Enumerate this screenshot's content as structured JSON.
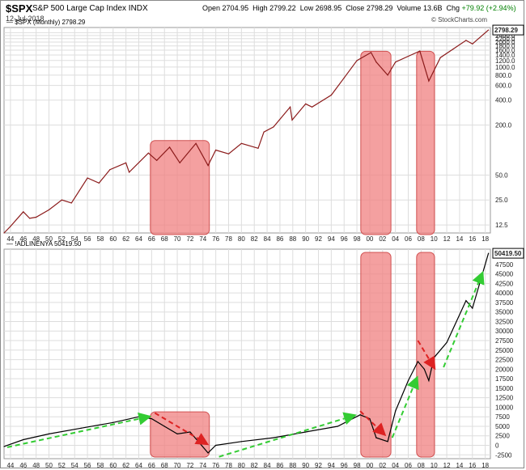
{
  "header": {
    "symbol": "$SPX",
    "description": "S&P 500 Large Cap Index INDX",
    "date": "12-Jul-2018",
    "open_label": "Open",
    "open": "2704.95",
    "high_label": "High",
    "high": "2799.22",
    "low_label": "Low",
    "low": "2698.95",
    "close_label": "Close",
    "close": "2798.29",
    "volume_label": "Volume",
    "volume": "13.6B",
    "chg_label": "Chg",
    "chg": "+79.92 (+2.94%)",
    "credit": "© StockCharts.com"
  },
  "colors": {
    "recession_fill": "#f08080",
    "recession_stroke": "#d05050",
    "spx_line": "#8b1a1a",
    "adl_line": "#000000",
    "green_arrow": "#33cc33",
    "red_arrow": "#dd2222",
    "grid": "#dddddd"
  },
  "chart_data": [
    {
      "type": "line",
      "title": "$SPX (Monthly) 2798.29",
      "series": [
        {
          "name": "$SPX (Monthly) 2798.29",
          "x": [
            1943,
            1944,
            1946,
            1947,
            1948,
            1950,
            1952,
            1953.5,
            1956,
            1957.8,
            1959.5,
            1962,
            1962.5,
            1965.5,
            1966.8,
            1968.8,
            1970.4,
            1972.9,
            1974.8,
            1976,
            1978,
            1980,
            1982.6,
            1983.5,
            1985,
            1987.6,
            1987.9,
            1990,
            1991,
            1994,
            1996,
            1998,
            2000.2,
            2001,
            2002.8,
            2004,
            2007.8,
            2009.2,
            2011,
            2013,
            2015,
            2016,
            2018.5
          ],
          "values": [
            10,
            12,
            18,
            15,
            15.5,
            19,
            25,
            23,
            46,
            40,
            58,
            70,
            54,
            92,
            75,
            108,
            70,
            120,
            65,
            100,
            90,
            120,
            105,
            165,
            190,
            330,
            230,
            360,
            330,
            460,
            740,
            1200,
            1500,
            1150,
            800,
            1150,
            1560,
            680,
            1300,
            1650,
            2100,
            1900,
            2800
          ]
        }
      ],
      "ylim": [
        10,
        3000
      ],
      "yscale": "log",
      "yticks": [
        12.5,
        25.0,
        50.0,
        200.0,
        400.0,
        600.0,
        800.0,
        1000.0,
        1200.0,
        1400.0,
        1600.0,
        1800.0,
        2000.0,
        2200.0,
        2400.0,
        2600.0
      ],
      "last_value_label": "2798.29"
    },
    {
      "type": "line",
      "title": "!ADLINENYA 50419.50",
      "series": [
        {
          "name": "!ADLINENYA 50419.50",
          "x": [
            1943,
            1946,
            1950,
            1955,
            1960,
            1964,
            1966,
            1968,
            1970,
            1972,
            1974.8,
            1976,
            1980,
            1985,
            1990,
            1995,
            1998.5,
            2000,
            2001,
            2002.8,
            2004,
            2006,
            2007.5,
            2008.5,
            2009.2,
            2010,
            2012,
            2015,
            2016,
            2018.5
          ],
          "values": [
            -300,
            1500,
            3000,
            4500,
            6000,
            7500,
            7000,
            5000,
            3000,
            3500,
            -2000,
            0,
            1000,
            2000,
            3500,
            5000,
            8000,
            7000,
            2000,
            1000,
            9000,
            17000,
            22000,
            20000,
            17000,
            23000,
            27000,
            38000,
            36000,
            50419.5
          ]
        }
      ],
      "ylim": [
        -3500,
        51500
      ],
      "yticks": [
        -2500,
        0,
        2500,
        5000,
        7500,
        10000,
        12500,
        15000,
        17500,
        20000,
        22500,
        25000,
        27500,
        30000,
        32500,
        35000,
        37500,
        40000,
        42500,
        45000,
        47500
      ],
      "last_value_label": "50419.50"
    }
  ],
  "x_axis": {
    "ticks": [
      1944,
      1946,
      1948,
      1950,
      1952,
      1954,
      1956,
      1958,
      1960,
      1962,
      1964,
      1966,
      1968,
      1970,
      1972,
      1974,
      1976,
      1978,
      1980,
      1982,
      1984,
      1986,
      1988,
      1990,
      1992,
      1994,
      1996,
      1998,
      2000,
      2002,
      2004,
      2006,
      2008,
      2010,
      2012,
      2014,
      2016,
      2018
    ],
    "tick_labels": [
      "44",
      "46",
      "48",
      "50",
      "52",
      "54",
      "56",
      "58",
      "60",
      "62",
      "64",
      "66",
      "68",
      "70",
      "72",
      "74",
      "76",
      "78",
      "80",
      "82",
      "84",
      "86",
      "88",
      "90",
      "92",
      "94",
      "96",
      "98",
      "00",
      "02",
      "04",
      "06",
      "08",
      "10",
      "12",
      "14",
      "16",
      "18"
    ]
  },
  "annotations": {
    "recession_bands": [
      [
        1965.8,
        1975.0
      ],
      [
        1998.6,
        2003.3
      ],
      [
        2007.3,
        2010.1
      ]
    ],
    "green_arrows": [
      [
        1943.5,
        -500,
        1965.5,
        7500
      ],
      [
        1976.5,
        -3000,
        1997.5,
        7800
      ],
      [
        2003.5,
        2000,
        2007.3,
        17500
      ],
      [
        2011.5,
        20500,
        2017.5,
        45000
      ]
    ],
    "red_arrows": [
      [
        1966.5,
        8500,
        1974.5,
        500
      ],
      [
        1998.5,
        9000,
        2002.2,
        3000
      ],
      [
        2007.5,
        27500,
        2010.0,
        20500
      ]
    ]
  }
}
